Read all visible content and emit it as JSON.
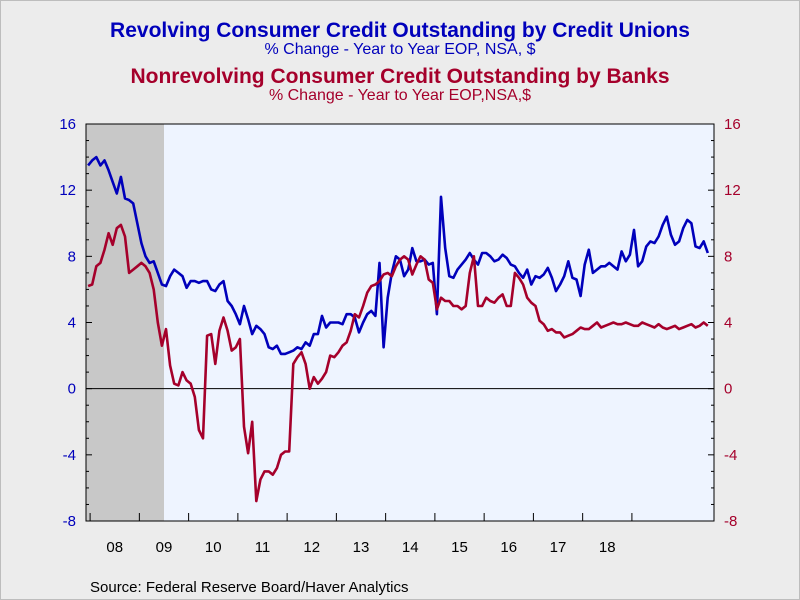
{
  "titles": {
    "title1": "Revolving Consumer Credit Outstanding by Credit Unions",
    "subtitle1": "% Change - Year to Year     EOP, NSA, $",
    "title2": "Nonrevolving Consumer Credit Outstanding by Banks",
    "subtitle2": "% Change - Year to Year     EOP,NSA,$"
  },
  "source": "Source:  Federal Reserve Board/Haver Analytics",
  "colors": {
    "series1": "#0000bb",
    "series2": "#a5002b",
    "plot_bg": "#eef4ff",
    "recession": "#c8c8c8"
  },
  "chart_data": {
    "type": "line",
    "x_unit": "months since Jan 2008",
    "x_labels": [
      "08",
      "09",
      "10",
      "11",
      "12",
      "13",
      "14",
      "15",
      "16",
      "17",
      "18"
    ],
    "ylim_left": [
      -8,
      16
    ],
    "ylim_right": [
      -8,
      16
    ],
    "y_ticks_left": [
      "-8",
      "-4",
      "0",
      "4",
      "8",
      "12",
      "16"
    ],
    "y_ticks_right": [
      "-8",
      "-4",
      "0",
      "4",
      "8",
      "12",
      "16"
    ],
    "recession": {
      "start": "Dec 2007",
      "end": "Jun 2009"
    },
    "series": [
      {
        "name": "Revolving Consumer Credit Outstanding by Credit Unions",
        "axis": "left",
        "points": [
          [
            -1,
            13.5
          ],
          [
            0,
            13.8
          ],
          [
            1,
            14.0
          ],
          [
            2,
            13.5
          ],
          [
            3,
            13.8
          ],
          [
            4,
            13.2
          ],
          [
            5,
            12.5
          ],
          [
            6,
            11.8
          ],
          [
            7,
            12.8
          ],
          [
            8,
            11.5
          ],
          [
            9,
            11.4
          ],
          [
            10,
            11.2
          ],
          [
            11,
            10.0
          ],
          [
            12,
            8.8
          ],
          [
            13,
            8.0
          ],
          [
            14,
            7.6
          ],
          [
            15,
            7.7
          ],
          [
            16,
            7.0
          ],
          [
            17,
            6.3
          ],
          [
            18,
            6.2
          ],
          [
            19,
            6.8
          ],
          [
            20,
            7.2
          ],
          [
            21,
            7.0
          ],
          [
            22,
            6.8
          ],
          [
            23,
            6.1
          ],
          [
            24,
            6.5
          ],
          [
            25,
            6.5
          ],
          [
            26,
            6.4
          ],
          [
            27,
            6.5
          ],
          [
            28,
            6.5
          ],
          [
            29,
            6.0
          ],
          [
            30,
            5.9
          ],
          [
            31,
            6.3
          ],
          [
            32,
            6.5
          ],
          [
            33,
            5.3
          ],
          [
            34,
            5.0
          ],
          [
            35,
            4.5
          ],
          [
            36,
            3.9
          ],
          [
            37,
            5.0
          ],
          [
            38,
            4.2
          ],
          [
            39,
            3.3
          ],
          [
            40,
            3.8
          ],
          [
            41,
            3.6
          ],
          [
            42,
            3.3
          ],
          [
            43,
            2.5
          ],
          [
            44,
            2.4
          ],
          [
            45,
            2.6
          ],
          [
            46,
            2.1
          ],
          [
            47,
            2.1
          ],
          [
            48,
            2.2
          ],
          [
            49,
            2.3
          ],
          [
            50,
            2.5
          ],
          [
            51,
            2.4
          ],
          [
            52,
            2.8
          ],
          [
            53,
            2.6
          ],
          [
            54,
            3.3
          ],
          [
            55,
            3.3
          ],
          [
            56,
            4.4
          ],
          [
            57,
            3.7
          ],
          [
            58,
            4.0
          ],
          [
            59,
            4.0
          ],
          [
            60,
            4.0
          ],
          [
            61,
            3.9
          ],
          [
            62,
            4.5
          ],
          [
            63,
            4.5
          ],
          [
            64,
            4.3
          ],
          [
            65,
            3.4
          ],
          [
            66,
            4.0
          ],
          [
            67,
            4.5
          ],
          [
            68,
            4.7
          ],
          [
            69,
            4.4
          ],
          [
            70,
            7.6
          ],
          [
            71,
            2.5
          ],
          [
            72,
            5.5
          ],
          [
            73,
            7.0
          ],
          [
            74,
            8.0
          ],
          [
            75,
            7.8
          ],
          [
            76,
            6.8
          ],
          [
            77,
            7.2
          ],
          [
            78,
            8.5
          ],
          [
            79,
            7.7
          ],
          [
            80,
            7.7
          ],
          [
            81,
            7.8
          ],
          [
            82,
            7.5
          ],
          [
            83,
            7.6
          ],
          [
            84,
            4.5
          ],
          [
            85,
            11.6
          ],
          [
            86,
            8.5
          ],
          [
            87,
            6.8
          ],
          [
            88,
            6.7
          ],
          [
            89,
            7.2
          ],
          [
            90,
            7.5
          ],
          [
            91,
            7.8
          ],
          [
            92,
            8.2
          ],
          [
            93,
            7.8
          ],
          [
            94,
            7.5
          ],
          [
            95,
            8.2
          ],
          [
            96,
            8.2
          ],
          [
            97,
            8.0
          ],
          [
            98,
            7.7
          ],
          [
            99,
            7.8
          ],
          [
            100,
            8.1
          ],
          [
            101,
            7.9
          ],
          [
            102,
            7.5
          ],
          [
            103,
            7.4
          ],
          [
            104,
            7.0
          ],
          [
            105,
            6.7
          ],
          [
            106,
            7.2
          ],
          [
            107,
            6.3
          ],
          [
            108,
            6.8
          ],
          [
            109,
            6.7
          ],
          [
            110,
            6.9
          ],
          [
            111,
            7.3
          ],
          [
            112,
            6.7
          ],
          [
            113,
            5.9
          ],
          [
            114,
            6.3
          ],
          [
            115,
            6.8
          ],
          [
            116,
            7.7
          ],
          [
            117,
            6.7
          ],
          [
            118,
            6.6
          ],
          [
            119,
            5.6
          ],
          [
            120,
            7.5
          ],
          [
            121,
            8.4
          ],
          [
            122,
            7.0
          ],
          [
            123,
            7.2
          ],
          [
            124,
            7.4
          ],
          [
            125,
            7.4
          ],
          [
            126,
            7.6
          ],
          [
            127,
            7.4
          ],
          [
            128,
            7.2
          ],
          [
            129,
            8.3
          ],
          [
            130,
            7.7
          ],
          [
            131,
            8.1
          ],
          [
            132,
            9.6
          ],
          [
            133,
            7.4
          ],
          [
            134,
            7.7
          ],
          [
            135,
            8.6
          ],
          [
            136,
            8.9
          ],
          [
            137,
            8.8
          ],
          [
            138,
            9.2
          ],
          [
            139,
            9.9
          ],
          [
            140,
            10.4
          ],
          [
            141,
            9.3
          ],
          [
            142,
            8.7
          ],
          [
            143,
            8.9
          ],
          [
            144,
            9.7
          ],
          [
            145,
            10.2
          ],
          [
            146,
            10.0
          ],
          [
            147,
            8.6
          ],
          [
            148,
            8.5
          ],
          [
            149,
            8.9
          ],
          [
            150,
            8.2
          ]
        ]
      },
      {
        "name": "Nonrevolving Consumer Credit Outstanding by Banks",
        "axis": "right",
        "points": [
          [
            -1,
            6.2
          ],
          [
            0,
            6.3
          ],
          [
            1,
            7.4
          ],
          [
            2,
            7.6
          ],
          [
            3,
            8.4
          ],
          [
            4,
            9.4
          ],
          [
            5,
            8.7
          ],
          [
            6,
            9.7
          ],
          [
            7,
            9.9
          ],
          [
            8,
            9.2
          ],
          [
            9,
            7.0
          ],
          [
            10,
            7.2
          ],
          [
            11,
            7.4
          ],
          [
            12,
            7.6
          ],
          [
            13,
            7.4
          ],
          [
            14,
            7.0
          ],
          [
            15,
            6.0
          ],
          [
            16,
            4.0
          ],
          [
            17,
            2.6
          ],
          [
            18,
            3.6
          ],
          [
            19,
            1.4
          ],
          [
            20,
            0.3
          ],
          [
            21,
            0.2
          ],
          [
            22,
            1.0
          ],
          [
            23,
            0.5
          ],
          [
            24,
            0.3
          ],
          [
            25,
            -0.5
          ],
          [
            26,
            -2.5
          ],
          [
            27,
            -3.0
          ],
          [
            28,
            3.2
          ],
          [
            29,
            3.3
          ],
          [
            30,
            1.5
          ],
          [
            31,
            3.5
          ],
          [
            32,
            4.3
          ],
          [
            33,
            3.5
          ],
          [
            34,
            2.3
          ],
          [
            35,
            2.5
          ],
          [
            36,
            3.0
          ],
          [
            37,
            -2.3
          ],
          [
            38,
            -3.9
          ],
          [
            39,
            -2.0
          ],
          [
            40,
            -6.8
          ],
          [
            41,
            -5.5
          ],
          [
            42,
            -5.0
          ],
          [
            43,
            -5.0
          ],
          [
            44,
            -5.2
          ],
          [
            45,
            -4.8
          ],
          [
            46,
            -4.0
          ],
          [
            47,
            -3.8
          ],
          [
            48,
            -3.8
          ],
          [
            49,
            1.5
          ],
          [
            50,
            1.9
          ],
          [
            51,
            2.2
          ],
          [
            52,
            1.5
          ],
          [
            53,
            0.0
          ],
          [
            54,
            0.7
          ],
          [
            55,
            0.3
          ],
          [
            56,
            0.6
          ],
          [
            57,
            1.0
          ],
          [
            58,
            2.0
          ],
          [
            59,
            1.9
          ],
          [
            60,
            2.2
          ],
          [
            61,
            2.6
          ],
          [
            62,
            2.8
          ],
          [
            63,
            3.5
          ],
          [
            64,
            4.5
          ],
          [
            65,
            4.3
          ],
          [
            66,
            5.0
          ],
          [
            67,
            5.8
          ],
          [
            68,
            6.2
          ],
          [
            69,
            6.3
          ],
          [
            70,
            6.5
          ],
          [
            71,
            6.9
          ],
          [
            72,
            7.0
          ],
          [
            73,
            6.8
          ],
          [
            74,
            7.4
          ],
          [
            75,
            7.8
          ],
          [
            76,
            8.0
          ],
          [
            77,
            7.8
          ],
          [
            78,
            6.9
          ],
          [
            79,
            7.5
          ],
          [
            80,
            8.0
          ],
          [
            81,
            7.8
          ],
          [
            82,
            6.6
          ],
          [
            83,
            6.4
          ],
          [
            84,
            4.8
          ],
          [
            85,
            5.5
          ],
          [
            86,
            5.3
          ],
          [
            87,
            5.3
          ],
          [
            88,
            5.0
          ],
          [
            89,
            5.0
          ],
          [
            90,
            4.8
          ],
          [
            91,
            5.0
          ],
          [
            92,
            7.0
          ],
          [
            93,
            8.0
          ],
          [
            94,
            5.0
          ],
          [
            95,
            5.0
          ],
          [
            96,
            5.5
          ],
          [
            97,
            5.3
          ],
          [
            98,
            5.2
          ],
          [
            99,
            5.5
          ],
          [
            100,
            5.7
          ],
          [
            101,
            5.0
          ],
          [
            102,
            5.0
          ],
          [
            103,
            7.0
          ],
          [
            104,
            6.7
          ],
          [
            105,
            6.3
          ],
          [
            106,
            5.5
          ],
          [
            107,
            5.2
          ],
          [
            108,
            5.0
          ],
          [
            109,
            4.1
          ],
          [
            110,
            3.9
          ],
          [
            111,
            3.5
          ],
          [
            112,
            3.6
          ],
          [
            113,
            3.4
          ],
          [
            114,
            3.4
          ],
          [
            115,
            3.1
          ],
          [
            116,
            3.2
          ],
          [
            117,
            3.3
          ],
          [
            118,
            3.5
          ],
          [
            119,
            3.7
          ],
          [
            120,
            3.6
          ],
          [
            121,
            3.6
          ],
          [
            122,
            3.8
          ],
          [
            123,
            4.0
          ],
          [
            124,
            3.7
          ],
          [
            125,
            3.8
          ],
          [
            126,
            3.9
          ],
          [
            127,
            4.0
          ],
          [
            128,
            3.9
          ],
          [
            129,
            3.9
          ],
          [
            130,
            4.0
          ],
          [
            131,
            3.9
          ],
          [
            132,
            3.8
          ],
          [
            133,
            3.8
          ],
          [
            134,
            4.0
          ],
          [
            135,
            3.9
          ],
          [
            136,
            3.8
          ],
          [
            137,
            3.7
          ],
          [
            138,
            3.9
          ],
          [
            139,
            3.7
          ],
          [
            140,
            3.6
          ],
          [
            141,
            3.7
          ],
          [
            142,
            3.8
          ],
          [
            143,
            3.6
          ],
          [
            144,
            3.7
          ],
          [
            145,
            3.8
          ],
          [
            146,
            3.9
          ],
          [
            147,
            3.7
          ],
          [
            148,
            3.8
          ],
          [
            149,
            4.0
          ],
          [
            150,
            3.8
          ]
        ]
      }
    ]
  }
}
